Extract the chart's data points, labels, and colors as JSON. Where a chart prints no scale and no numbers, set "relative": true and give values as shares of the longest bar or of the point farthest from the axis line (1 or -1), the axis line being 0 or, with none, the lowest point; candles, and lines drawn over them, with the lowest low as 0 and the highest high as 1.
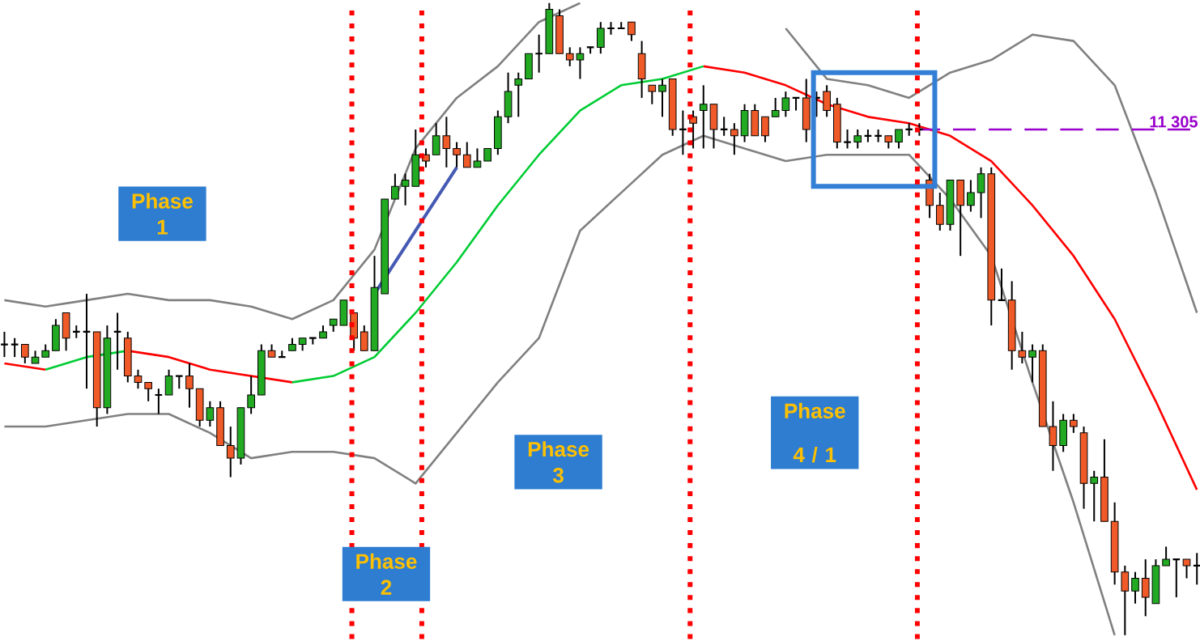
{
  "chart_data": [
    {
      "type": "candlestick",
      "relative": true,
      "categories": [
        null,
        null,
        null,
        null,
        null,
        null,
        null,
        null,
        null,
        null,
        null,
        null,
        null,
        null,
        null,
        null,
        null,
        null,
        null,
        null,
        null,
        null,
        null,
        null,
        null,
        null,
        null,
        null,
        null,
        null,
        null,
        null,
        null,
        null,
        null,
        null,
        null,
        null,
        null,
        null,
        null,
        null,
        null,
        null,
        null,
        null,
        null,
        null,
        null,
        null,
        null,
        null,
        null,
        null,
        null,
        null,
        null,
        null,
        null,
        null,
        null,
        null,
        null,
        null,
        null,
        null,
        null,
        null,
        null,
        null,
        null,
        null,
        null,
        null,
        null,
        null,
        null,
        null,
        null,
        null,
        null,
        null,
        null,
        null,
        null,
        null,
        null,
        null,
        null,
        null,
        null,
        null,
        null,
        null,
        null,
        null,
        null,
        null,
        null,
        null,
        null,
        null,
        null,
        null,
        null,
        null,
        null,
        null,
        null,
        null,
        null,
        null,
        null,
        null,
        null,
        null,
        null
      ],
      "ohlc": [
        [
          0.46,
          0.48,
          0.44,
          0.46
        ],
        [
          0.46,
          0.47,
          0.44,
          0.46
        ],
        [
          0.46,
          0.46,
          0.43,
          0.44
        ],
        [
          0.43,
          0.45,
          0.43,
          0.44
        ],
        [
          0.44,
          0.46,
          0.44,
          0.45
        ],
        [
          0.45,
          0.5,
          0.45,
          0.49
        ],
        [
          0.51,
          0.51,
          0.45,
          0.47
        ],
        [
          0.48,
          0.49,
          0.47,
          0.48
        ],
        [
          0.48,
          0.54,
          0.39,
          0.48
        ],
        [
          0.48,
          0.48,
          0.33,
          0.36
        ],
        [
          0.36,
          0.49,
          0.35,
          0.47
        ],
        [
          0.48,
          0.51,
          0.42,
          0.48
        ],
        [
          0.47,
          0.48,
          0.4,
          0.41
        ],
        [
          0.41,
          0.42,
          0.39,
          0.4
        ],
        [
          0.4,
          0.4,
          0.37,
          0.39
        ],
        [
          0.38,
          0.39,
          0.35,
          0.38
        ],
        [
          0.38,
          0.42,
          0.38,
          0.41
        ],
        [
          0.41,
          0.41,
          0.39,
          0.41
        ],
        [
          0.41,
          0.43,
          0.36,
          0.39
        ],
        [
          0.39,
          0.39,
          0.33,
          0.34
        ],
        [
          0.34,
          0.37,
          0.33,
          0.36
        ],
        [
          0.36,
          0.37,
          0.3,
          0.3
        ],
        [
          0.3,
          0.33,
          0.25,
          0.28
        ],
        [
          0.28,
          0.36,
          0.27,
          0.36
        ],
        [
          0.36,
          0.41,
          0.35,
          0.38
        ],
        [
          0.38,
          0.46,
          0.38,
          0.45
        ],
        [
          0.45,
          0.46,
          0.44,
          0.44
        ],
        [
          0.44,
          0.45,
          0.44,
          0.44
        ],
        [
          0.45,
          0.47,
          0.45,
          0.46
        ],
        [
          0.46,
          0.47,
          0.45,
          0.47
        ],
        [
          0.47,
          0.47,
          0.46,
          0.47
        ],
        [
          0.47,
          0.49,
          0.47,
          0.48
        ],
        [
          0.49,
          0.5,
          0.48,
          0.5
        ],
        [
          0.49,
          0.53,
          0.49,
          0.53
        ],
        [
          0.51,
          0.51,
          0.45,
          0.47
        ],
        [
          0.48,
          0.49,
          0.45,
          0.45
        ],
        [
          0.45,
          0.6,
          0.45,
          0.55
        ],
        [
          0.54,
          0.69,
          0.54,
          0.69
        ],
        [
          0.69,
          0.73,
          0.69,
          0.71
        ],
        [
          0.71,
          0.73,
          0.68,
          0.72
        ],
        [
          0.71,
          0.8,
          0.71,
          0.76
        ],
        [
          0.76,
          0.77,
          0.74,
          0.75
        ],
        [
          0.76,
          0.81,
          0.76,
          0.79
        ],
        [
          0.79,
          0.82,
          0.74,
          0.77
        ],
        [
          0.77,
          0.78,
          0.74,
          0.76
        ],
        [
          0.76,
          0.78,
          0.74,
          0.74
        ],
        [
          0.74,
          0.77,
          0.74,
          0.75
        ],
        [
          0.75,
          0.77,
          0.75,
          0.77
        ],
        [
          0.77,
          0.83,
          0.76,
          0.82
        ],
        [
          0.82,
          0.89,
          0.81,
          0.86
        ],
        [
          0.87,
          0.89,
          0.82,
          0.88
        ],
        [
          0.88,
          0.92,
          0.88,
          0.92
        ],
        [
          0.92,
          0.95,
          0.89,
          0.92
        ],
        [
          0.92,
          1.0,
          0.92,
          0.99
        ],
        [
          0.98,
          0.99,
          0.92,
          0.92
        ],
        [
          0.92,
          0.93,
          0.9,
          0.91
        ],
        [
          0.91,
          0.93,
          0.88,
          0.92
        ],
        [
          0.93,
          0.93,
          0.92,
          0.93
        ],
        [
          0.93,
          0.97,
          0.92,
          0.96
        ],
        [
          0.96,
          0.97,
          0.95,
          0.96
        ],
        [
          0.96,
          0.97,
          0.96,
          0.96
        ],
        [
          0.97,
          0.97,
          0.94,
          0.95
        ],
        [
          0.92,
          0.94,
          0.85,
          0.88
        ],
        [
          0.87,
          0.87,
          0.84,
          0.86
        ],
        [
          0.86,
          0.88,
          0.82,
          0.87
        ],
        [
          0.88,
          0.88,
          0.79,
          0.8
        ],
        [
          0.8,
          0.83,
          0.76,
          0.8
        ],
        [
          0.82,
          0.83,
          0.77,
          0.81
        ],
        [
          0.83,
          0.87,
          0.77,
          0.84
        ],
        [
          0.84,
          0.84,
          0.77,
          0.8
        ],
        [
          0.8,
          0.82,
          0.79,
          0.8
        ],
        [
          0.8,
          0.81,
          0.76,
          0.79
        ],
        [
          0.79,
          0.84,
          0.78,
          0.83
        ],
        [
          0.83,
          0.84,
          0.79,
          0.79
        ],
        [
          0.82,
          0.82,
          0.78,
          0.79
        ],
        [
          0.82,
          0.85,
          0.82,
          0.83
        ],
        [
          0.83,
          0.86,
          0.82,
          0.85
        ],
        [
          0.85,
          0.85,
          0.83,
          0.85
        ],
        [
          0.85,
          0.88,
          0.78,
          0.8
        ],
        [
          0.85,
          0.86,
          0.82,
          0.85
        ],
        [
          0.86,
          0.87,
          0.82,
          0.83
        ],
        [
          0.84,
          0.85,
          0.77,
          0.78
        ],
        [
          0.78,
          0.8,
          0.77,
          0.78
        ],
        [
          0.78,
          0.8,
          0.77,
          0.79
        ],
        [
          0.79,
          0.8,
          0.78,
          0.79
        ],
        [
          0.79,
          0.8,
          0.78,
          0.79
        ],
        [
          0.79,
          0.79,
          0.77,
          0.78
        ],
        [
          0.78,
          0.8,
          0.77,
          0.8
        ],
        [
          0.8,
          0.81,
          0.79,
          0.8
        ],
        [
          0.8,
          0.81,
          0.79,
          0.8
        ],
        [
          0.72,
          0.73,
          0.66,
          0.68
        ],
        [
          0.68,
          0.7,
          0.64,
          0.65
        ],
        [
          0.65,
          0.72,
          0.64,
          0.72
        ],
        [
          0.72,
          0.72,
          0.6,
          0.68
        ],
        [
          0.68,
          0.72,
          0.67,
          0.7
        ],
        [
          0.7,
          0.74,
          0.66,
          0.73
        ],
        [
          0.73,
          0.74,
          0.49,
          0.53
        ],
        [
          0.53,
          0.58,
          0.53,
          0.53
        ],
        [
          0.53,
          0.56,
          0.42,
          0.45
        ],
        [
          0.45,
          0.48,
          0.43,
          0.44
        ],
        [
          0.44,
          0.46,
          0.4,
          0.45
        ],
        [
          0.45,
          0.46,
          0.33,
          0.33
        ],
        [
          0.33,
          0.37,
          0.26,
          0.3
        ],
        [
          0.3,
          0.35,
          0.29,
          0.34
        ],
        [
          0.34,
          0.35,
          0.32,
          0.33
        ],
        [
          0.32,
          0.33,
          0.2,
          0.24
        ],
        [
          0.24,
          0.26,
          0.18,
          0.25
        ],
        [
          0.25,
          0.31,
          0.18,
          0.18
        ],
        [
          0.18,
          0.21,
          0.08,
          0.1
        ],
        [
          0.1,
          0.11,
          0.0,
          0.07
        ],
        [
          0.07,
          0.1,
          0.05,
          0.09
        ],
        [
          0.09,
          0.12,
          0.03,
          0.06
        ],
        [
          0.05,
          0.12,
          0.05,
          0.11
        ],
        [
          0.11,
          0.14,
          0.11,
          0.12
        ],
        [
          0.12,
          0.12,
          0.06,
          0.12
        ],
        [
          0.12,
          0.12,
          0.09,
          0.11
        ],
        [
          0.11,
          0.13,
          0.08,
          0.11
        ]
      ],
      "ref_lines": [
        {
          "axis": "y",
          "value": 0.8,
          "color": "#9900cc",
          "line_style": "dashed"
        }
      ],
      "annotations": [
        "Phase 1",
        "Phase 2",
        "Phase 3",
        "Phase 4 / 1",
        "11 305"
      ]
    },
    {
      "type": "line",
      "relative": true,
      "categories": [
        null,
        null,
        null,
        null,
        null,
        null,
        null,
        null,
        null,
        null,
        null,
        null,
        null,
        null,
        null,
        null,
        null,
        null,
        null,
        null,
        null,
        null,
        null,
        null,
        null,
        null,
        null,
        null,
        null,
        null
      ],
      "series": [
        {
          "color": "#808080",
          "values": [
            0.53,
            0.52,
            0.53,
            0.54,
            0.53,
            0.53,
            0.52,
            0.5,
            0.53,
            0.61,
            0.77,
            0.85,
            0.9,
            0.97,
            1.0,
            null,
            null,
            null,
            null,
            0.96,
            0.88,
            0.87,
            0.85,
            0.89,
            0.91,
            0.95,
            0.94,
            0.87,
            0.7,
            0.51
          ]
        },
        {
          "color": "#808080",
          "values": [
            0.33,
            0.33,
            0.34,
            0.35,
            0.35,
            0.32,
            0.28,
            0.29,
            0.29,
            0.28,
            0.24,
            0.32,
            0.4,
            0.47,
            0.64,
            0.7,
            0.76,
            0.79,
            0.77,
            0.75,
            0.76,
            0.76,
            0.76,
            0.69,
            0.6,
            0.4,
            0.21,
            0.0,
            null,
            null
          ]
        },
        {
          "color": "#ff0000",
          "values": [
            0.43,
            0.42,
            null,
            0.45,
            0.44,
            0.42,
            0.41,
            0.4,
            null,
            null,
            null,
            null,
            null,
            null,
            null,
            null,
            null,
            0.9,
            0.89,
            0.87,
            0.84,
            0.82,
            0.81,
            0.79,
            0.75,
            0.68,
            0.6,
            0.5,
            0.37,
            0.23
          ]
        },
        {
          "color": "#00cc33",
          "values": [
            null,
            0.42,
            0.44,
            0.45,
            null,
            null,
            null,
            0.4,
            0.41,
            0.44,
            0.51,
            0.59,
            0.68,
            0.76,
            0.83,
            0.87,
            0.88,
            0.9,
            null,
            null,
            null,
            null,
            null,
            null,
            null,
            null,
            null,
            null,
            null,
            null
          ]
        },
        {
          "color": "#465ab4",
          "values": [
            null,
            null,
            null,
            null,
            null,
            null,
            null,
            null,
            null,
            0.54,
            0.64,
            0.74,
            null,
            null,
            null,
            null,
            null,
            null,
            null,
            null,
            null,
            null,
            null,
            null,
            null,
            null,
            null,
            null,
            null,
            null
          ]
        }
      ]
    }
  ]
}
